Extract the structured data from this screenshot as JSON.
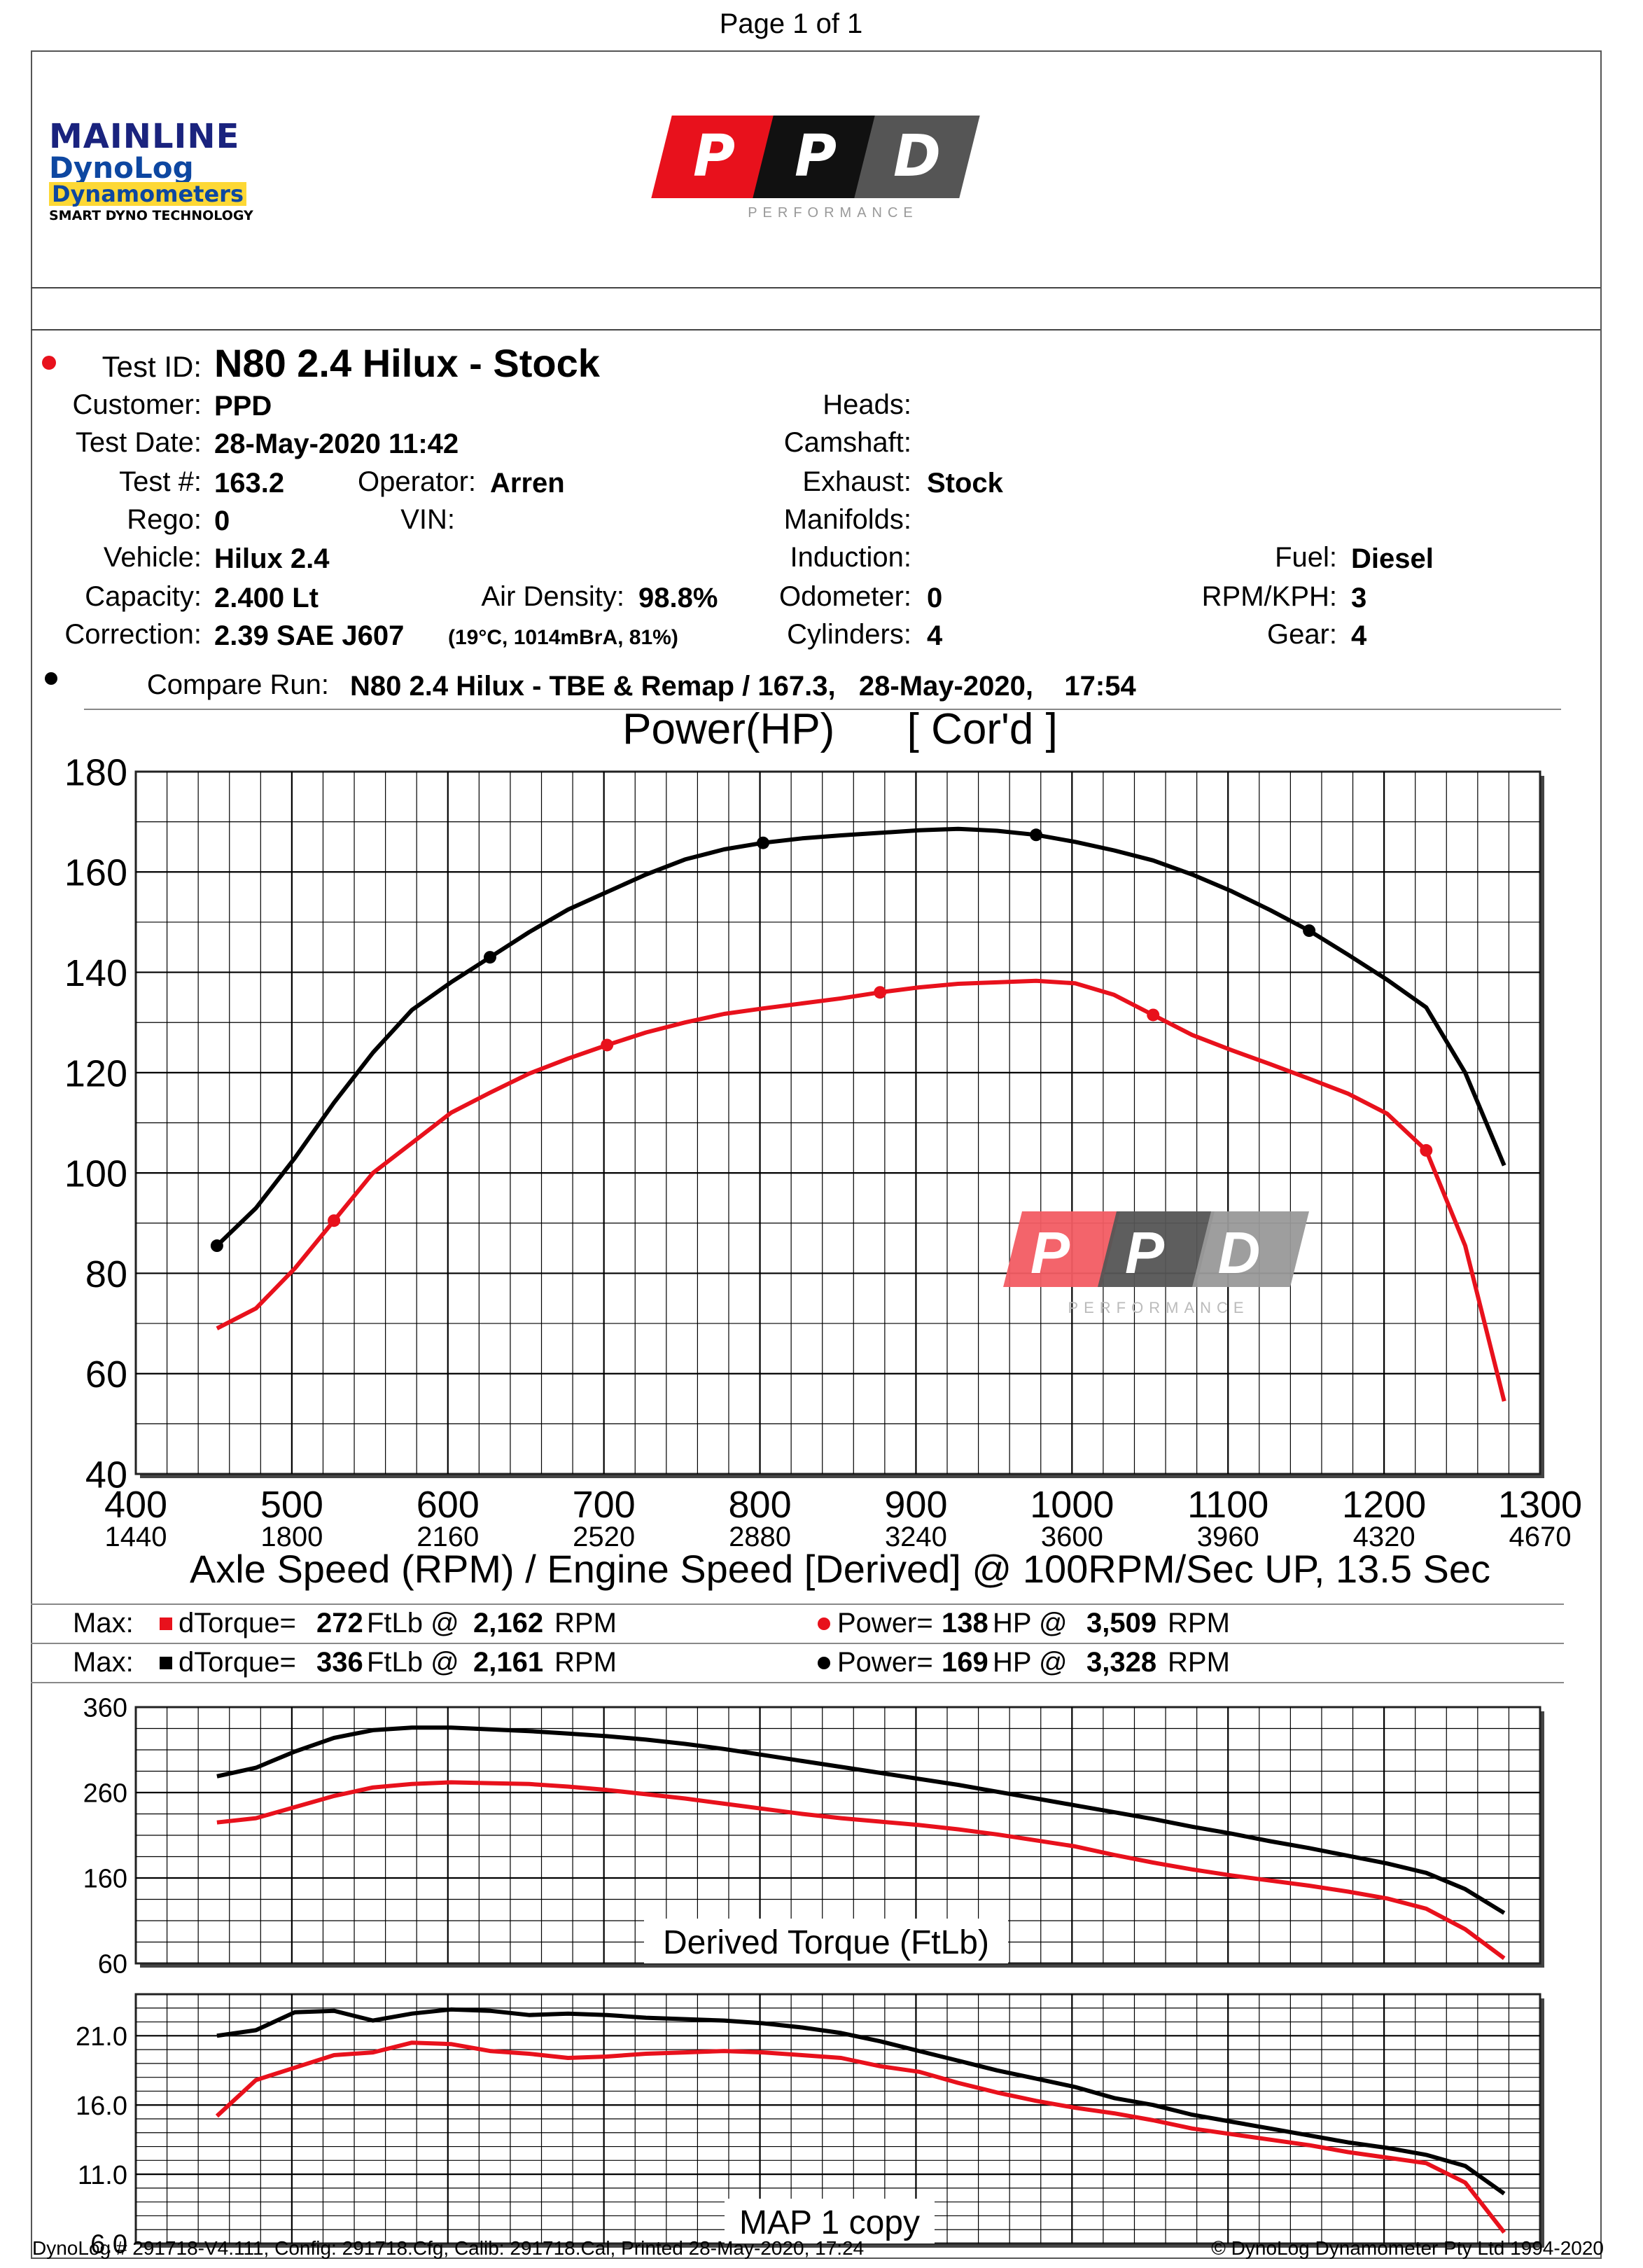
{
  "page_label": "Page 1 of 1",
  "logos": {
    "mainline": {
      "line1": "MAINLINE",
      "line2": "DynoLog",
      "line3": "Dynamometers",
      "line4": "SMART DYNO TECHNOLOGY"
    },
    "ppd": {
      "letters": [
        "P",
        "P",
        "D"
      ],
      "sub": "PERFORMANCE",
      "colors": [
        "#e8111c",
        "#111111",
        "#555555"
      ]
    }
  },
  "test": {
    "test_id_label": "Test ID:",
    "test_id": "N80 2.4 Hilux - Stock",
    "customer_label": "Customer:",
    "customer": "PPD",
    "test_date_label": "Test Date:",
    "test_date": "28-May-2020 11:42",
    "test_num_label": "Test #:",
    "test_num": "163.2",
    "operator_label": "Operator:",
    "operator": "Arren",
    "rego_label": "Rego:",
    "rego": "0",
    "vin_label": "VIN:",
    "vehicle_label": "Vehicle:",
    "vehicle": "Hilux 2.4",
    "capacity_label": "Capacity:",
    "capacity": "2.400 Lt",
    "air_density_label": "Air Density:",
    "air_density": "98.8%",
    "correction_label": "Correction:",
    "correction": "2.39 SAE J607",
    "correction_note": "(19°C, 1014mBrA, 81%)",
    "heads_label": "Heads:",
    "camshaft_label": "Camshaft:",
    "exhaust_label": "Exhaust:",
    "exhaust": "Stock",
    "manifolds_label": "Manifolds:",
    "induction_label": "Induction:",
    "odometer_label": "Odometer:",
    "odometer": "0",
    "cylinders_label": "Cylinders:",
    "cylinders": "4",
    "fuel_label": "Fuel:",
    "fuel": "Diesel",
    "rpm_kph_label": "RPM/KPH:",
    "rpm_kph": "3",
    "gear_label": "Gear:",
    "gear": "4",
    "compare_label": "Compare Run:",
    "compare_run": "N80 2.4 Hilux - TBE & Remap / 167.3,   28-May-2020,    17:54"
  },
  "summary": {
    "row1": {
      "max_label": "Max:",
      "tq_label": "dTorque=",
      "tq_val": "272",
      "tq_unit": "FtLb @",
      "tq_rpm": "2,162",
      "tq_rpm_unit": "RPM",
      "pw_label": "Power=",
      "pw_val": "138",
      "pw_unit": "HP @",
      "pw_rpm": "3,509",
      "pw_rpm_unit": "RPM",
      "color": "#e8111c"
    },
    "row2": {
      "max_label": "Max:",
      "tq_label": "dTorque=",
      "tq_val": "336",
      "tq_unit": "FtLb @",
      "tq_rpm": "2,161",
      "tq_rpm_unit": "RPM",
      "pw_label": "Power=",
      "pw_val": "169",
      "pw_unit": "HP @",
      "pw_rpm": "3,328",
      "pw_rpm_unit": "RPM",
      "color": "#000000"
    }
  },
  "footer": {
    "left": "DynoLog # 291718-V4.111, Config: 291718.Cfg, Calib: 291718.Cal, Printed 28-May-2020, 17:24",
    "right": "© DynoLog Dynamometer Pty Ltd 1994-2020"
  },
  "chart_data": [
    {
      "type": "line",
      "title": "Power(HP)      [ Cor'd ]",
      "xlabel": "Axle Speed (RPM) / Engine Speed [Derived] @ 100RPM/Sec UP, 13.5 Sec",
      "xlim": [
        400,
        1300
      ],
      "ylim": [
        40,
        180
      ],
      "x_ticks": [
        400,
        500,
        600,
        700,
        800,
        900,
        1000,
        1100,
        1200,
        1300
      ],
      "x_tick_labels": [
        "400",
        "500",
        "600",
        "700",
        "800",
        "900",
        "1000",
        "1100",
        "1200",
        "1300"
      ],
      "x2_tick_labels": [
        "1440",
        "1800",
        "2160",
        "2520",
        "2880",
        "3240",
        "3600",
        "3960",
        "4320",
        "4670"
      ],
      "y_ticks": [
        40,
        60,
        80,
        100,
        120,
        140,
        160,
        180
      ],
      "y_tick_labels": [
        "40",
        "60",
        "80",
        "100",
        "120",
        "140",
        "160",
        "180"
      ],
      "grid": true,
      "series": [
        {
          "color": "#000000",
          "x": [
            452,
            477,
            502,
            527,
            552,
            577,
            602,
            627,
            652,
            677,
            702,
            727,
            752,
            777,
            802,
            827,
            852,
            877,
            902,
            927,
            952,
            977,
            1002,
            1027,
            1052,
            1077,
            1102,
            1127,
            1152,
            1177,
            1202,
            1227,
            1252,
            1277
          ],
          "y": [
            85.5,
            93,
            103,
            114,
            124,
            132.5,
            138,
            143,
            148,
            152.5,
            156,
            159.5,
            162.5,
            164.5,
            165.8,
            166.7,
            167.3,
            167.8,
            168.3,
            168.6,
            168.2,
            167.4,
            166,
            164.3,
            162.3,
            159.5,
            156.2,
            152.4,
            148.3,
            143.5,
            138.5,
            133,
            120,
            101.5
          ],
          "markers_x": [
            452,
            627,
            802,
            977,
            1152
          ]
        },
        {
          "color": "#e8111c",
          "x": [
            452,
            477,
            502,
            527,
            552,
            577,
            602,
            627,
            652,
            677,
            702,
            727,
            752,
            777,
            802,
            827,
            852,
            877,
            902,
            927,
            952,
            977,
            1002,
            1027,
            1052,
            1077,
            1102,
            1127,
            1152,
            1177,
            1202,
            1227,
            1252,
            1277
          ],
          "y": [
            69,
            73,
            81,
            90.5,
            100,
            106,
            112,
            116,
            119.8,
            122.8,
            125.5,
            128,
            130,
            131.7,
            132.8,
            133.8,
            134.8,
            136,
            137,
            137.7,
            138,
            138.3,
            137.8,
            135.5,
            131.5,
            127.5,
            124.5,
            121.7,
            118.8,
            115.8,
            111.8,
            104.5,
            85.5,
            54.5
          ],
          "markers_x": [
            527,
            702,
            877,
            1052,
            1227
          ]
        }
      ]
    },
    {
      "type": "line",
      "title": "Derived Torque (FtLb)",
      "xlim": [
        400,
        1300
      ],
      "ylim": [
        60,
        360
      ],
      "y_ticks": [
        60,
        160,
        260,
        360
      ],
      "y_tick_labels": [
        "60",
        "160",
        "260",
        "360"
      ],
      "grid": true,
      "series": [
        {
          "color": "#000000",
          "x": [
            452,
            477,
            502,
            527,
            552,
            577,
            602,
            627,
            652,
            677,
            702,
            727,
            752,
            777,
            802,
            827,
            852,
            877,
            902,
            927,
            952,
            977,
            1002,
            1027,
            1052,
            1077,
            1102,
            1127,
            1152,
            1177,
            1202,
            1227,
            1252,
            1277
          ],
          "y": [
            279,
            289,
            308,
            324,
            333,
            336,
            336,
            334,
            332,
            329,
            326,
            322,
            317,
            311,
            304,
            297,
            290,
            283,
            276,
            269,
            261,
            253,
            245,
            237,
            229,
            220,
            212,
            203,
            195,
            186,
            177,
            166,
            147,
            119
          ],
          "step": true
        },
        {
          "color": "#e8111c",
          "x": [
            452,
            477,
            502,
            527,
            552,
            577,
            602,
            627,
            652,
            677,
            702,
            727,
            752,
            777,
            802,
            827,
            852,
            877,
            902,
            927,
            952,
            977,
            1002,
            1027,
            1052,
            1077,
            1102,
            1127,
            1152,
            1177,
            1202,
            1227,
            1252,
            1277
          ],
          "y": [
            225,
            230,
            243,
            256,
            266,
            270,
            272,
            271,
            270,
            267,
            263,
            258,
            253,
            247,
            241,
            235,
            230,
            226,
            222,
            217,
            211,
            204,
            197,
            187,
            178,
            170,
            163,
            157,
            151,
            144,
            136,
            124,
            100,
            66
          ],
          "step": true
        }
      ]
    },
    {
      "type": "line",
      "title": "MAP 1 copy",
      "xlim": [
        400,
        1300
      ],
      "ylim": [
        6.0,
        24.0
      ],
      "y_ticks": [
        6.0,
        11.0,
        16.0,
        21.0
      ],
      "y_tick_labels": [
        "6.0",
        "11.0",
        "16.0",
        "21.0"
      ],
      "grid": true,
      "series": [
        {
          "color": "#000000",
          "x": [
            452,
            477,
            502,
            527,
            552,
            577,
            602,
            627,
            652,
            677,
            702,
            727,
            752,
            777,
            802,
            827,
            852,
            877,
            902,
            927,
            952,
            977,
            1002,
            1027,
            1052,
            1077,
            1102,
            1127,
            1152,
            1177,
            1202,
            1227,
            1252,
            1277
          ],
          "y": [
            21.0,
            21.4,
            22.7,
            22.8,
            22.1,
            22.6,
            22.9,
            22.8,
            22.5,
            22.6,
            22.5,
            22.3,
            22.2,
            22.1,
            21.9,
            21.6,
            21.2,
            20.6,
            19.9,
            19.2,
            18.5,
            17.9,
            17.3,
            16.5,
            16.0,
            15.3,
            14.8,
            14.3,
            13.8,
            13.3,
            12.9,
            12.4,
            11.6,
            9.6
          ]
        },
        {
          "color": "#e8111c",
          "x": [
            452,
            477,
            502,
            527,
            552,
            577,
            602,
            627,
            652,
            677,
            702,
            727,
            752,
            777,
            802,
            827,
            852,
            877,
            902,
            927,
            952,
            977,
            1002,
            1027,
            1052,
            1077,
            1102,
            1127,
            1152,
            1177,
            1202,
            1227,
            1252,
            1277
          ],
          "y": [
            15.2,
            17.8,
            18.7,
            19.6,
            19.8,
            20.5,
            20.4,
            19.9,
            19.7,
            19.4,
            19.5,
            19.7,
            19.8,
            19.9,
            19.8,
            19.6,
            19.4,
            18.8,
            18.4,
            17.6,
            16.9,
            16.3,
            15.8,
            15.4,
            14.9,
            14.3,
            13.9,
            13.5,
            13.1,
            12.6,
            12.2,
            11.8,
            10.4,
            6.8
          ]
        }
      ]
    }
  ]
}
